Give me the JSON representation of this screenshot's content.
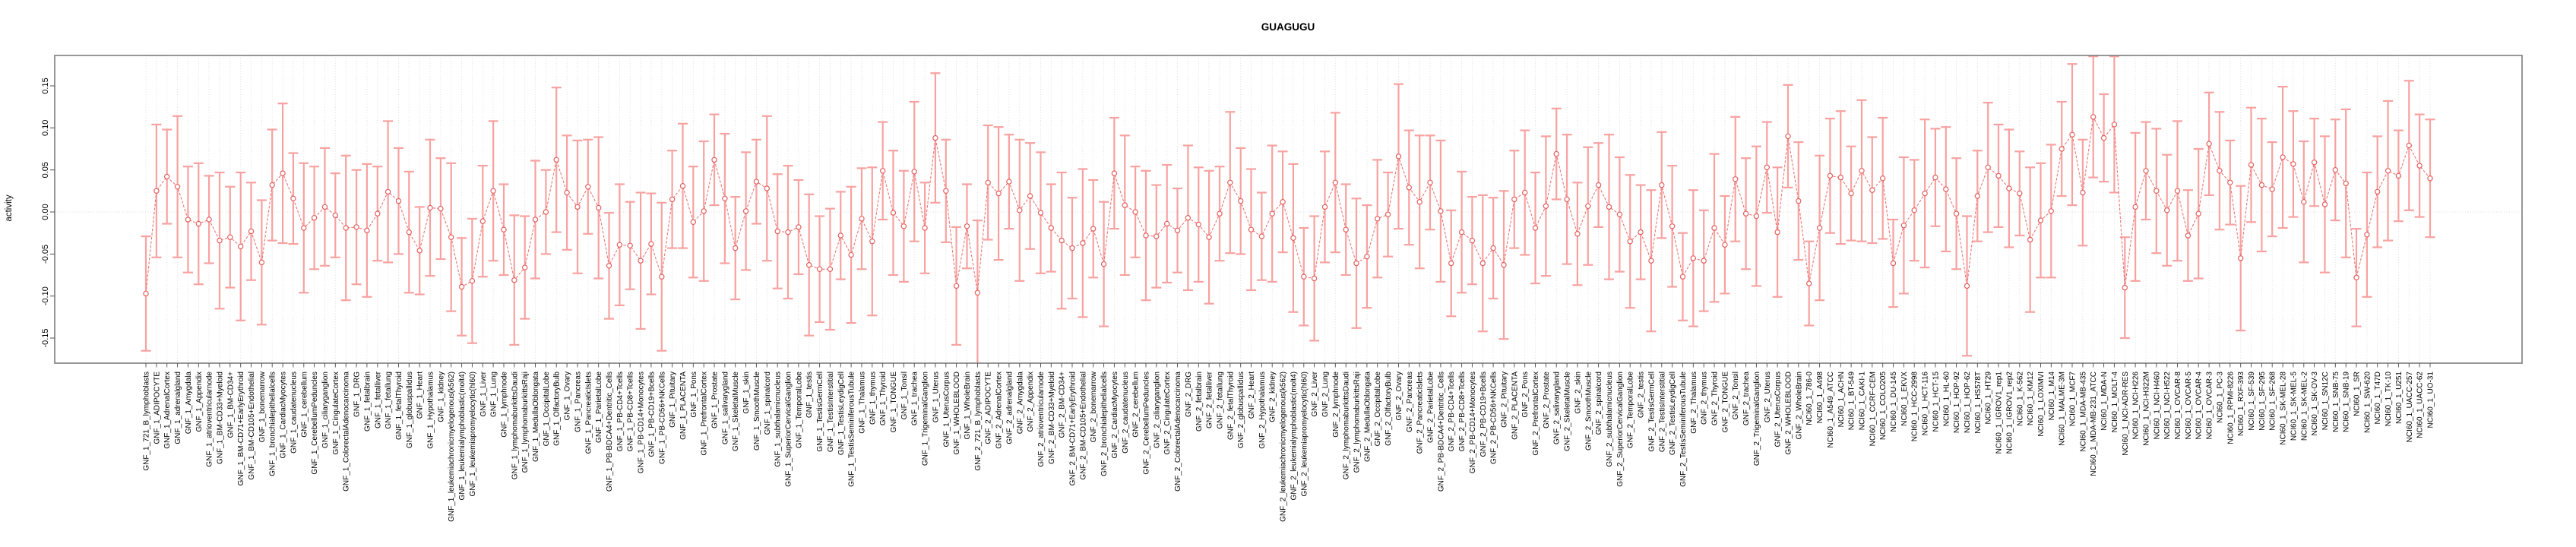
{
  "chart_data": {
    "type": "scatter",
    "title": "GUAGUGU",
    "ylabel": "activity",
    "xlabel": "",
    "ylim": [
      -0.18,
      0.18
    ],
    "yticks": [
      -0.15,
      -0.1,
      -0.05,
      0.0,
      0.05,
      0.1,
      0.15
    ],
    "legend_position": "none",
    "grid": "dotted vertical line per category, dotted horizontal line at 0",
    "marker": "open-circle",
    "error_bars": true,
    "colors": {
      "series": "#e4605f",
      "error_bar": "#f7a2a0",
      "line": "#ea7876",
      "grid": "#d9d9d9",
      "axis_box": "#7d7d7d",
      "tick": "#4d4d4d",
      "text": "#000000",
      "background": "#ffffff"
    },
    "categories": [
      "GNF_1_721_B_lymphoblasts",
      "GNF_1_ADIPOCYTE",
      "GNF_1_AdrenalCortex",
      "GNF_1_adrenalgland",
      "GNF_1_Amygdala",
      "GNF_1_Appendix",
      "GNF_1_atrioventricularnode",
      "GNF_1_BM-CD33+Myeloid",
      "GNF_1_BM-CD34+",
      "GNF_1_BM-CD71+EarlyErythroid",
      "GNF_1_BM-CD105+Endothelial",
      "GNF_1_bonemarrow",
      "GNF_1_bronchialepithelialcells",
      "GNF_1_CardiacMyocytes",
      "GNF_1_caudatenucleus",
      "GNF_1_cerebellum",
      "GNF_1_CerebellumPeduncles",
      "GNF_1_ciliaryganglion",
      "GNF_1_CingulateCortex",
      "GNF_1_ColorectalAdenocarcinoma",
      "GNF_1_DRG",
      "GNF_1_fetalbrain",
      "GNF_1_fetalliver",
      "GNF_1_fetallung",
      "GNF_1_fetalThyroid",
      "GNF_1_globuspallidus",
      "GNF_1_Heart",
      "GNF_1_Hypothalamus",
      "GNF_1_kidney",
      "GNF_1_leukemiachronicmyelogenous(k562)",
      "GNF_1_leukemialymphoblastic(molt4)",
      "GNF_1_leukemiapromyelocytic(hl60)",
      "GNF_1_Liver",
      "GNF_1_Lung",
      "GNF_1_lymphnode",
      "GNF_1_lymphomaburkittsDaudi",
      "GNF_1_lymphomaburkittsRaji",
      "GNF_1_MedullaOblongata",
      "GNF_1_OccipitalLobe",
      "GNF_1_OlfactoryBulb",
      "GNF_1_Ovary",
      "GNF_1_Pancreas",
      "GNF_1_PancreaticIslets",
      "GNF_1_ParietalLobe",
      "GNF_1_PB-BDCA4+Dentritic_Cells",
      "GNF_1_PB-CD4+Tcells",
      "GNF_1_PB-CD8+Tcells",
      "GNF_1_PB-CD14+Monocytes",
      "GNF_1_PB-CD19+Bcells",
      "GNF_1_PB-CD56+NKCells",
      "GNF_1_Pituitary",
      "GNF_1_PLACENTA",
      "GNF_1_Pons",
      "GNF_1_PrefrontalCortex",
      "GNF_1_Prostate",
      "GNF_1_salivarygland",
      "GNF_1_SkeletalMuscle",
      "GNF_1_skin",
      "GNF_1_SmoothMuscle",
      "GNF_1_spinalcord",
      "GNF_1_subthalamicnucleus",
      "GNF_1_SuperiorCervicalGanglion",
      "GNF_1_TemporalLobe",
      "GNF_1_testis",
      "GNF_1_TestisGermCell",
      "GNF_1_TestisInterstitial",
      "GNF_1_TestisLeydigCell",
      "GNF_1_TestisSeminiferousTubule",
      "GNF_1_Thalamus",
      "GNF_1_thymus",
      "GNF_1_Thyroid",
      "GNF_1_TONGUE",
      "GNF_1_Tonsil",
      "GNF_1_trachea",
      "GNF_1_TrigeminalGanglion",
      "GNF_1_Uterus",
      "GNF_1_UterusCorpus",
      "GNF_1_WHOLEBLOOD",
      "GNF_1_WholeBrain",
      "GNF_2_721_B_lymphoblasts",
      "GNF_2_ADIPOCYTE",
      "GNF_2_AdrenalCortex",
      "GNF_2_adrenalgland",
      "GNF_2_Amygdala",
      "GNF_2_Appendix",
      "GNF_2_atrioventricularnode",
      "GNF_2_BM-CD33+Myeloid",
      "GNF_2_BM-CD34+",
      "GNF_2_BM-CD71+EarlyErythroid",
      "GNF_2_BM-CD105+Endothelial",
      "GNF_2_bonemarrow",
      "GNF_2_bronchialepithelialcells",
      "GNF_2_CardiacMyocytes",
      "GNF_2_caudatenucleus",
      "GNF_2_cerebellum",
      "GNF_2_CerebellumPeduncles",
      "GNF_2_ciliaryganglion",
      "GNF_2_CingulateCortex",
      "GNF_2_ColorectalAdenocarcinoma",
      "GNF_2_DRG",
      "GNF_2_fetalbrain",
      "GNF_2_fetalliver",
      "GNF_2_fetallung",
      "GNF_2_fetalThyroid",
      "GNF_2_globuspallidus",
      "GNF_2_Heart",
      "GNF_2_Hypothalamus",
      "GNF_2_kidney",
      "GNF_2_leukemiachronicmyelogenous(k562)",
      "GNF_2_leukemialymphoblastic(molt4)",
      "GNF_2_leukemiapromyelocytic(hl60)",
      "GNF_2_Liver",
      "GNF_2_Lung",
      "GNF_2_lymphnode",
      "GNF_2_lymphomaburkittsDaudi",
      "GNF_2_lymphomaburkittsRaji",
      "GNF_2_MedullaOblongata",
      "GNF_2_OccipitalLobe",
      "GNF_2_OlfactoryBulb",
      "GNF_2_Ovary",
      "GNF_2_Pancreas",
      "GNF_2_PancreaticIslets",
      "GNF_2_ParietalLobe",
      "GNF_2_PB-BDCA4+Dentritic_Cells",
      "GNF_2_PB-CD4+Tcells",
      "GNF_2_PB-CD8+Tcells",
      "GNF_2_PB-CD14+Monocytes",
      "GNF_2_PB-CD19+Bcells",
      "GNF_2_PB-CD56+NKCells",
      "GNF_2_Pituitary",
      "GNF_2_PLACENTA",
      "GNF_2_Pons",
      "GNF_2_PrefrontalCortex",
      "GNF_2_Prostate",
      "GNF_2_salivarygland",
      "GNF_2_SkeletalMuscle",
      "GNF_2_skin",
      "GNF_2_SmoothMuscle",
      "GNF_2_spinalcord",
      "GNF_2_subthalamicnucleus",
      "GNF_2_SuperiorCervicalGanglion",
      "GNF_2_TemporalLobe",
      "GNF_2_testis",
      "GNF_2_TestisGermCell",
      "GNF_2_TestisInterstitial",
      "GNF_2_TestisLeydigCell",
      "GNF_2_TestisSeminiferousTubule",
      "GNF_2_Thalamus",
      "GNF_2_thymus",
      "GNF_2_Thyroid",
      "GNF_2_TONGUE",
      "GNF_2_Tonsil",
      "GNF_2_trachea",
      "GNF_2_TrigeminalGanglion",
      "GNF_2_Uterus",
      "GNF_2_UterusCorpus",
      "GNF_2_WHOLEBLOOD",
      "GNF_2_WholeBrain",
      "NCI60_1_786-0",
      "NCI60_1_A498",
      "NCI60_1_A549_ATCC",
      "NCI60_1_ACHN",
      "NCI60_1_BT-549",
      "NCI60_1_CAKI-1",
      "NCI60_1_CCRF-CEM",
      "NCI60_1_COLO205",
      "NCI60_1_DU-145",
      "NCI60_1_EKVX",
      "NCI60_1_HCC-2998",
      "NCI60_1_HCT-116",
      "NCI60_1_HCT-15",
      "NCI60_1_HL-60",
      "NCI60_1_HOP-92",
      "NCI60_1_HOP-62",
      "NCI60_1_HS578T",
      "NCI60_1_HT29",
      "NCI60_1_IGROV1_rep1",
      "NCI60_1_IGROV1_rep2",
      "NCI60_1_K-562",
      "NCI60_1_KM12",
      "NCI60_1_LOXIMVI",
      "NCI60_1_M14",
      "NCI60_1_MALME-3M",
      "NCI60_1_MCF7",
      "NCI60_1_MDA-MB-435",
      "NCI60_1_MDA-MB-231_ATCC",
      "NCI60_1_MDA-N",
      "NCI60_1_MOLT-4",
      "NCI60_1_NCI-ADR-RES",
      "NCI60_1_NCI-H226",
      "NCI60_1_NCI-H322M",
      "NCI60_1_NCI-H460",
      "NCI60_1_NCI-H522",
      "NCI60_1_OVCAR-8",
      "NCI60_1_OVCAR-5",
      "NCI60_1_OVCAR-4",
      "NCI60_1_OVCAR-3",
      "NCI60_1_PC-3",
      "NCI60_1_RPMI-8226",
      "NCI60_1_RXF-393",
      "NCI60_1_SF-539",
      "NCI60_1_SF-295",
      "NCI60_1_SF-268",
      "NCI60_1_SK-MEL-28",
      "NCI60_1_SK-MEL-5",
      "NCI60_1_SK-MEL-2",
      "NCI60_1_SK-OV-3",
      "NCI60_1_SN12C",
      "NCI60_1_SNB-75",
      "NCI60_1_SNB-19",
      "NCI60_1_SR",
      "NCI60_1_SW-620",
      "NCI60_1_T47D",
      "NCI60_1_TK-10",
      "NCI60_1_U251",
      "NCI60_1_UACC-257",
      "NCI60_1_UACC-62",
      "NCI60_1_UO-31"
    ],
    "values": [
      -0.097,
      0.025,
      0.042,
      0.03,
      -0.009,
      -0.014,
      -0.009,
      -0.034,
      -0.03,
      -0.041,
      -0.023,
      -0.06,
      0.032,
      0.046,
      0.016,
      -0.019,
      -0.007,
      0.006,
      -0.004,
      -0.019,
      -0.018,
      -0.022,
      -0.002,
      0.024,
      0.013,
      -0.024,
      -0.046,
      0.005,
      0.004,
      -0.03,
      -0.089,
      -0.082,
      -0.011,
      0.025,
      -0.021,
      -0.081,
      -0.066,
      -0.009,
      0.0,
      0.062,
      0.023,
      0.006,
      0.03,
      0.005,
      -0.064,
      -0.039,
      -0.04,
      -0.058,
      -0.038,
      -0.077,
      0.015,
      0.031,
      -0.012,
      0.001,
      0.062,
      0.016,
      -0.043,
      0.001,
      0.036,
      0.028,
      -0.023,
      -0.024,
      -0.018,
      -0.063,
      -0.068,
      -0.068,
      -0.028,
      -0.051,
      -0.008,
      -0.035,
      0.049,
      -0.001,
      -0.017,
      0.048,
      -0.019,
      0.088,
      0.025,
      -0.088,
      -0.017,
      -0.096,
      0.035,
      0.022,
      0.036,
      0.002,
      0.019,
      -0.001,
      -0.019,
      -0.034,
      -0.043,
      -0.037,
      -0.02,
      -0.062,
      0.046,
      0.008,
      0.0,
      -0.028,
      -0.029,
      -0.014,
      -0.022,
      -0.007,
      -0.015,
      -0.03,
      -0.002,
      0.035,
      0.013,
      -0.021,
      -0.029,
      -0.002,
      0.012,
      -0.031,
      -0.077,
      -0.079,
      0.006,
      0.035,
      -0.021,
      -0.061,
      -0.053,
      -0.008,
      -0.003,
      0.066,
      0.029,
      0.012,
      0.035,
      0.001,
      -0.061,
      -0.024,
      -0.034,
      -0.061,
      -0.043,
      -0.063,
      0.015,
      0.023,
      -0.019,
      0.007,
      0.069,
      0.015,
      -0.026,
      0.007,
      0.032,
      0.006,
      -0.003,
      -0.035,
      -0.024,
      -0.058,
      0.032,
      -0.017,
      -0.077,
      -0.055,
      -0.058,
      -0.019,
      -0.039,
      0.039,
      -0.002,
      -0.005,
      0.053,
      -0.024,
      0.09,
      0.013,
      -0.085,
      -0.019,
      0.043,
      0.041,
      0.022,
      0.049,
      0.026,
      0.04,
      -0.061,
      -0.016,
      0.002,
      0.022,
      0.041,
      0.027,
      -0.002,
      -0.088,
      0.019,
      0.053,
      0.043,
      0.028,
      0.022,
      -0.033,
      -0.01,
      0.001,
      0.075,
      0.092,
      0.023,
      0.113,
      0.088,
      0.104,
      -0.09,
      0.006,
      0.049,
      0.025,
      0.002,
      0.025,
      -0.028,
      -0.002,
      0.081,
      0.049,
      0.035,
      -0.055,
      0.056,
      0.032,
      0.027,
      0.065,
      0.057,
      0.012,
      0.059,
      0.009,
      0.05,
      0.034,
      -0.078,
      -0.027,
      0.024,
      0.049,
      0.043,
      0.079,
      0.055,
      0.04
    ],
    "errors": [
      0.068,
      0.079,
      0.056,
      0.084,
      0.063,
      0.072,
      0.052,
      0.081,
      0.06,
      0.088,
      0.058,
      0.074,
      0.066,
      0.083,
      0.054,
      0.077,
      0.061,
      0.07,
      0.05,
      0.086,
      0.068,
      0.079,
      0.056,
      0.084,
      0.063,
      0.072,
      0.052,
      0.081,
      0.06,
      0.088,
      0.058,
      0.074,
      0.066,
      0.083,
      0.054,
      0.077,
      0.061,
      0.07,
      0.05,
      0.086,
      0.068,
      0.079,
      0.056,
      0.084,
      0.063,
      0.072,
      0.052,
      0.081,
      0.06,
      0.088,
      0.058,
      0.074,
      0.066,
      0.083,
      0.054,
      0.077,
      0.061,
      0.07,
      0.05,
      0.086,
      0.068,
      0.079,
      0.056,
      0.084,
      0.063,
      0.072,
      0.052,
      0.081,
      0.06,
      0.088,
      0.058,
      0.074,
      0.066,
      0.083,
      0.054,
      0.077,
      0.061,
      0.07,
      0.05,
      0.086,
      0.068,
      0.079,
      0.056,
      0.084,
      0.063,
      0.072,
      0.052,
      0.081,
      0.06,
      0.088,
      0.058,
      0.074,
      0.066,
      0.083,
      0.054,
      0.077,
      0.061,
      0.07,
      0.05,
      0.086,
      0.068,
      0.079,
      0.056,
      0.084,
      0.063,
      0.072,
      0.052,
      0.081,
      0.06,
      0.088,
      0.058,
      0.074,
      0.066,
      0.083,
      0.054,
      0.077,
      0.061,
      0.07,
      0.05,
      0.086,
      0.068,
      0.079,
      0.056,
      0.084,
      0.063,
      0.072,
      0.052,
      0.081,
      0.06,
      0.088,
      0.058,
      0.074,
      0.066,
      0.083,
      0.054,
      0.077,
      0.061,
      0.07,
      0.05,
      0.086,
      0.068,
      0.079,
      0.056,
      0.084,
      0.063,
      0.072,
      0.052,
      0.081,
      0.06,
      0.088,
      0.058,
      0.074,
      0.066,
      0.083,
      0.054,
      0.077,
      0.061,
      0.07,
      0.05,
      0.086,
      0.068,
      0.079,
      0.056,
      0.084,
      0.063,
      0.072,
      0.052,
      0.081,
      0.06,
      0.088,
      0.058,
      0.074,
      0.066,
      0.083,
      0.054,
      0.077,
      0.061,
      0.07,
      0.05,
      0.086,
      0.068,
      0.079,
      0.056,
      0.084,
      0.063,
      0.072,
      0.052,
      0.081,
      0.06,
      0.088,
      0.058,
      0.074,
      0.066,
      0.083,
      0.054,
      0.077,
      0.061,
      0.07,
      0.05,
      0.086,
      0.068,
      0.079,
      0.056,
      0.084,
      0.063,
      0.072,
      0.052,
      0.081,
      0.06,
      0.088,
      0.058,
      0.074,
      0.066,
      0.083,
      0.054,
      0.077,
      0.061,
      0.07
    ]
  }
}
